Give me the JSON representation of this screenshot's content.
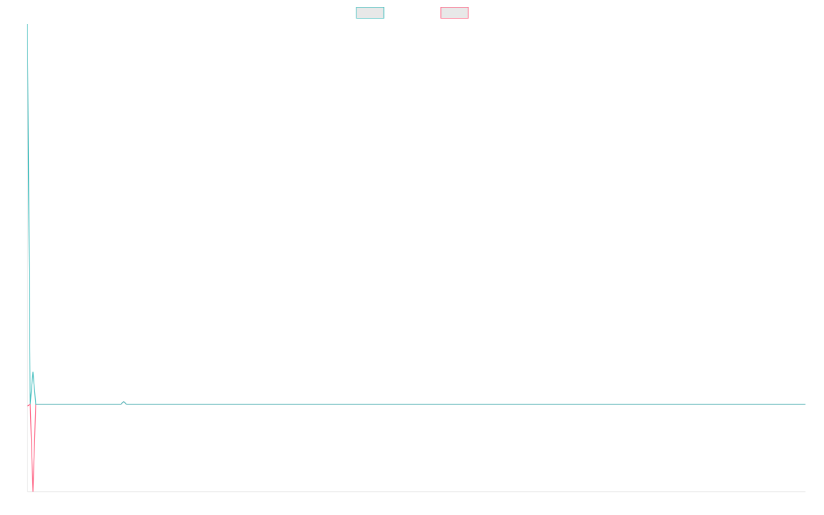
{
  "chart_data": {
    "type": "line",
    "x": [
      0,
      1,
      2,
      3,
      34,
      35,
      36,
      283
    ],
    "xlim": [
      0,
      283
    ],
    "ylim": [
      -23,
      100
    ],
    "legend": "top",
    "grid": false,
    "series": [
      {
        "color": "#4bc0c0",
        "values": [
          100,
          0,
          8.5,
          0,
          0,
          0.7,
          0,
          0
        ]
      },
      {
        "color": "#ff6384",
        "values": [
          -0.5,
          0,
          -23,
          0,
          0,
          0.7,
          0,
          0
        ]
      }
    ]
  }
}
